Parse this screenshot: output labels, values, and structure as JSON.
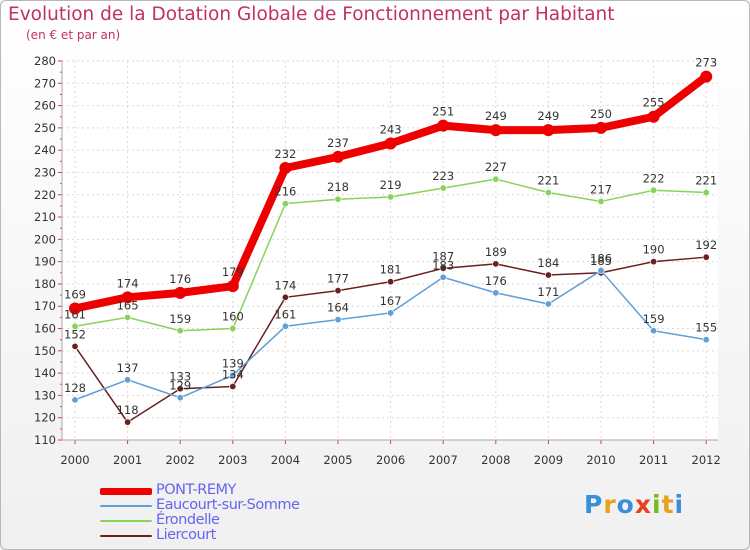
{
  "header": {
    "title": "Evolution de la Dotation Globale de Fonctionnement par Habitant",
    "subtitle": "(en € et par an)"
  },
  "logo": {
    "text": "Proxiti"
  },
  "chart_data": {
    "type": "line",
    "title": "Evolution de la Dotation Globale de Fonctionnement par Habitant",
    "subtitle": "(en € et par an)",
    "xlabel": "",
    "ylabel": "",
    "x": [
      "2000",
      "2001",
      "2002",
      "2003",
      "2004",
      "2005",
      "2006",
      "2007",
      "2008",
      "2009",
      "2010",
      "2011",
      "2012"
    ],
    "ylim": [
      110,
      280
    ],
    "yticks": [
      110,
      120,
      130,
      140,
      150,
      160,
      170,
      180,
      190,
      200,
      210,
      220,
      230,
      240,
      250,
      260,
      270,
      280
    ],
    "grid": true,
    "legend": "bottom-left",
    "series": [
      {
        "name": "PONT-REMY",
        "color": "#ee0000",
        "values": [
          169,
          174,
          176,
          179,
          232,
          237,
          243,
          251,
          249,
          249,
          250,
          255,
          273
        ]
      },
      {
        "name": "Eaucourt-sur-Somme",
        "color": "#5f9fd6",
        "values": [
          128,
          137,
          129,
          139,
          161,
          164,
          167,
          183,
          176,
          171,
          186,
          159,
          155
        ]
      },
      {
        "name": "Érondelle",
        "color": "#88d35a",
        "values": [
          161,
          165,
          159,
          160,
          216,
          218,
          219,
          223,
          227,
          221,
          217,
          222,
          221
        ]
      },
      {
        "name": "Liercourt",
        "color": "#6b1f1f",
        "values": [
          152,
          118,
          133,
          134,
          174,
          177,
          181,
          187,
          189,
          184,
          185,
          190,
          192
        ]
      }
    ]
  }
}
